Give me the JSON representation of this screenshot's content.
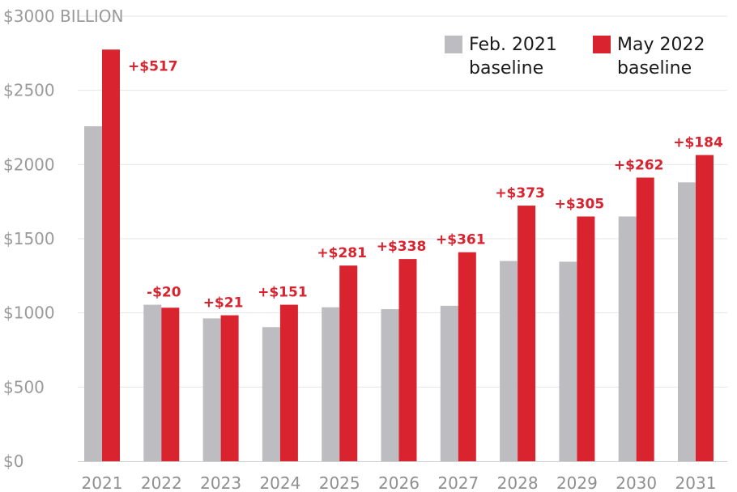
{
  "chart_data": {
    "type": "bar",
    "categories": [
      "2021",
      "2022",
      "2023",
      "2024",
      "2025",
      "2026",
      "2027",
      "2028",
      "2029",
      "2030",
      "2031"
    ],
    "series": [
      {
        "name": "Feb. 2021 baseline",
        "color": "#bdbdc1",
        "values": [
          2258,
          1055,
          963,
          904,
          1038,
          1025,
          1048,
          1350,
          1345,
          1650,
          1880
        ]
      },
      {
        "name": "May 2022 baseline",
        "color": "#d9232f",
        "values": [
          2775,
          1035,
          984,
          1055,
          1319,
          1363,
          1409,
          1723,
          1650,
          1912,
          2064
        ]
      }
    ],
    "data_labels": [
      "+$517",
      "-$20",
      "+$21",
      "+$151",
      "+$281",
      "+$338",
      "+$361",
      "+$373",
      "+$305",
      "+$262",
      "+$184"
    ],
    "y_tick_labels": [
      "$0",
      "$500",
      "$1000",
      "$1500",
      "$2000",
      "$2500",
      "$3000 BILLION"
    ],
    "y_ticks": [
      0,
      500,
      1000,
      1500,
      2000,
      2500,
      3000
    ],
    "ylim": [
      0,
      3000
    ],
    "grid": true,
    "legend_position": "top-right",
    "legend": {
      "series_1_line_1": "Feb. 2021",
      "series_1_line_2": "baseline",
      "series_2_line_1": "May 2022",
      "series_2_line_2": "baseline"
    },
    "title": "",
    "xlabel": "",
    "ylabel": ""
  }
}
